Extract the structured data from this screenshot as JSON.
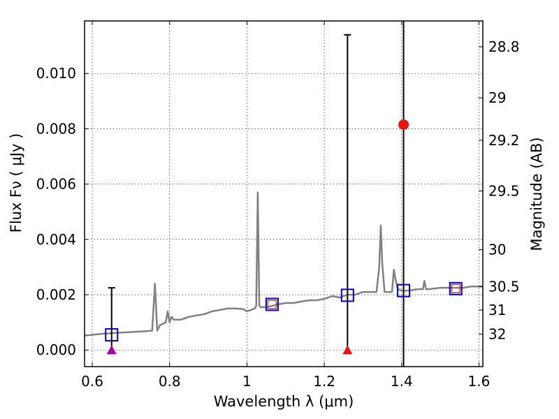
{
  "chart_data": {
    "type": "scatter",
    "xlabel": "Wavelength  λ (μm)",
    "ylabel": "Flux  Fν  ( μJy )",
    "y2label": "Magnitude (AB)",
    "xlim": [
      0.58,
      1.61
    ],
    "ylim": [
      -0.0006,
      0.0119
    ],
    "grid": true,
    "x_ticks": [
      0.6,
      0.8,
      1.0,
      1.2,
      1.4,
      1.6
    ],
    "x_tick_labels": [
      "0.6",
      "0.8",
      "1",
      "1.2",
      "1.4",
      "1.6"
    ],
    "y_ticks": [
      0.0,
      0.002,
      0.004,
      0.006,
      0.008,
      0.01
    ],
    "y_tick_labels": [
      "0.000",
      "0.002",
      "0.004",
      "0.006",
      "0.008",
      "0.010"
    ],
    "y2_ticks": [
      28.8,
      29.0,
      29.2,
      29.5,
      30.0,
      30.5,
      31.0,
      32.0
    ],
    "y2_tick_labels": [
      "28.8",
      "29",
      "29.2",
      "29.5",
      "30",
      "30.5",
      "31",
      "32"
    ],
    "colors": {
      "spectrum": "#808080",
      "model_points": "#0000cc",
      "model_inner": "#cc3333",
      "detection": "#ee1111",
      "upper_limit": "#ee1111",
      "upper_limit_purple": "#aa00aa",
      "error_bars": "#000000"
    },
    "series": [
      {
        "kind": "spectrum_line",
        "x": [
          0.58,
          0.62,
          0.66,
          0.7,
          0.74,
          0.755,
          0.762,
          0.768,
          0.775,
          0.79,
          0.795,
          0.8,
          0.805,
          0.81,
          0.83,
          0.85,
          0.87,
          0.89,
          0.91,
          0.93,
          0.95,
          0.97,
          0.99,
          1.0,
          1.02,
          1.024,
          1.028,
          1.032,
          1.036,
          1.045,
          1.06,
          1.08,
          1.1,
          1.12,
          1.14,
          1.16,
          1.18,
          1.2,
          1.22,
          1.24,
          1.26,
          1.28,
          1.3,
          1.32,
          1.335,
          1.342,
          1.346,
          1.35,
          1.356,
          1.365,
          1.375,
          1.38,
          1.385,
          1.39,
          1.4,
          1.42,
          1.44,
          1.455,
          1.459,
          1.463,
          1.47,
          1.5,
          1.53,
          1.56,
          1.58,
          1.61
        ],
        "y": [
          0.00052,
          0.00058,
          0.00062,
          0.00065,
          0.00068,
          0.0007,
          0.0024,
          0.0007,
          0.0009,
          0.001,
          0.0014,
          0.001,
          0.0012,
          0.0011,
          0.0011,
          0.0012,
          0.00125,
          0.0013,
          0.0014,
          0.00145,
          0.0015,
          0.0015,
          0.00148,
          0.0014,
          0.0015,
          0.0016,
          0.0057,
          0.0016,
          0.00155,
          0.00155,
          0.00158,
          0.00165,
          0.0017,
          0.0017,
          0.00175,
          0.0018,
          0.0018,
          0.00185,
          0.00195,
          0.0019,
          0.002,
          0.002,
          0.0021,
          0.0021,
          0.0021,
          0.003,
          0.0045,
          0.0031,
          0.0021,
          0.0021,
          0.0021,
          0.0029,
          0.0025,
          0.0022,
          0.00215,
          0.00215,
          0.0022,
          0.0022,
          0.0025,
          0.0022,
          0.0022,
          0.00225,
          0.00225,
          0.00225,
          0.0023,
          0.0023
        ]
      },
      {
        "kind": "model_photometry_squares",
        "x": [
          0.65,
          1.065,
          1.26,
          1.405,
          1.54
        ],
        "y": [
          0.00055,
          0.00165,
          0.00198,
          0.00215,
          0.00222
        ]
      },
      {
        "kind": "red_inner_markers",
        "x": [
          1.065,
          1.54
        ],
        "y": [
          0.00165,
          0.00222
        ]
      },
      {
        "kind": "detection",
        "x": [
          1.405
        ],
        "y": [
          0.00815
        ]
      },
      {
        "kind": "upper_limit_triangles",
        "x": [
          0.65,
          1.26
        ],
        "y": [
          0.0,
          0.0
        ],
        "colors": [
          "#aa00aa",
          "#ee1111"
        ]
      },
      {
        "kind": "error_bars",
        "x": [
          0.65,
          1.26,
          1.405
        ],
        "ylow": [
          0.0,
          0.0,
          -0.0006
        ],
        "yhigh": [
          0.00225,
          0.0114,
          0.0119
        ],
        "capped": [
          true,
          true,
          false
        ]
      }
    ]
  }
}
